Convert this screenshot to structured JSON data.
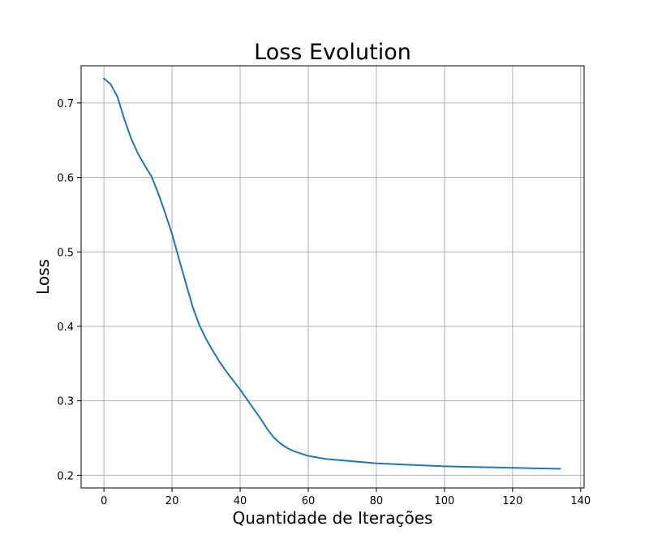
{
  "chart_data": {
    "type": "line",
    "title": "Loss Evolution",
    "xlabel": "Quantidade de Iterações",
    "ylabel": "Loss",
    "xlim": [
      -6.7,
      141
    ],
    "ylim": [
      0.183,
      0.75
    ],
    "xticks": [
      0,
      20,
      40,
      60,
      80,
      100,
      120,
      140
    ],
    "yticks": [
      0.2,
      0.3,
      0.4,
      0.5,
      0.6,
      0.7
    ],
    "xtick_labels": [
      "0",
      "20",
      "40",
      "60",
      "80",
      "100",
      "120",
      "140"
    ],
    "ytick_labels": [
      "0.2",
      "0.3",
      "0.4",
      "0.5",
      "0.6",
      "0.7"
    ],
    "grid": true,
    "series": [
      {
        "color": "#1f77b4",
        "x": [
          0,
          2,
          4,
          6,
          8,
          10,
          12,
          14,
          16,
          18,
          20,
          22,
          24,
          26,
          28,
          30,
          32,
          34,
          36,
          38,
          40,
          42,
          44,
          46,
          48,
          50,
          52,
          54,
          56,
          58,
          60,
          65,
          70,
          75,
          80,
          85,
          90,
          95,
          100,
          105,
          110,
          115,
          120,
          125,
          130,
          134
        ],
        "y": [
          0.733,
          0.725,
          0.708,
          0.678,
          0.652,
          0.632,
          0.616,
          0.601,
          0.578,
          0.552,
          0.524,
          0.491,
          0.459,
          0.427,
          0.402,
          0.383,
          0.367,
          0.352,
          0.339,
          0.327,
          0.315,
          0.302,
          0.289,
          0.276,
          0.262,
          0.25,
          0.242,
          0.236,
          0.232,
          0.229,
          0.226,
          0.222,
          0.22,
          0.218,
          0.216,
          0.215,
          0.214,
          0.213,
          0.212,
          0.2115,
          0.211,
          0.2105,
          0.21,
          0.2095,
          0.209,
          0.2087
        ]
      }
    ]
  }
}
